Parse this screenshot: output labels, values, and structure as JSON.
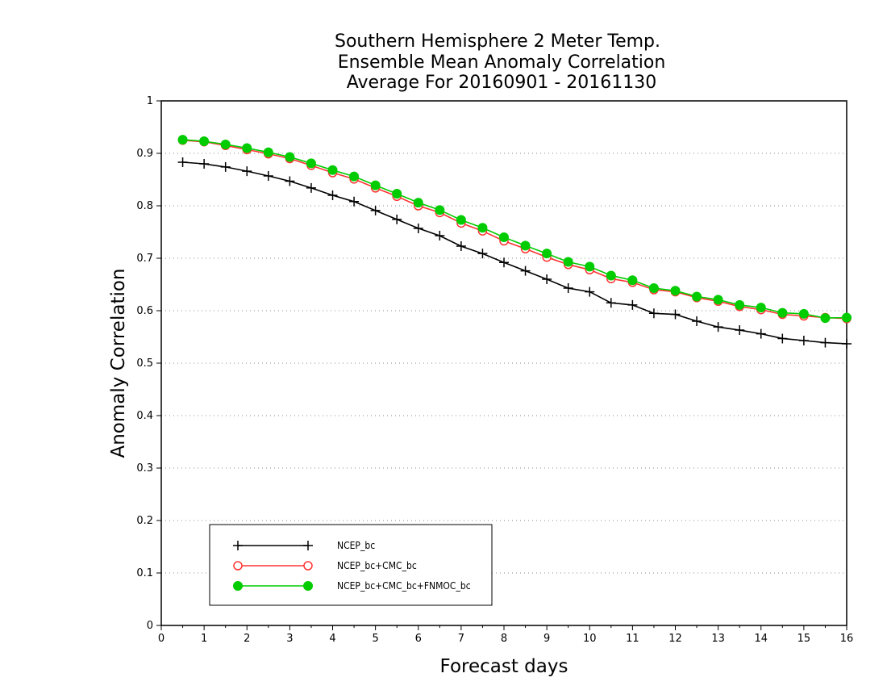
{
  "chart_data": {
    "type": "line",
    "title": [
      "Southern Hemisphere 2 Meter Temp.",
      "Ensemble Mean Anomaly Correlation",
      "Average For 20160901 - 20161130"
    ],
    "xlabel": "Forecast days",
    "ylabel": "Anomaly Correlation",
    "xlim": [
      0,
      16
    ],
    "ylim": [
      0,
      1
    ],
    "x_ticks": [
      "0",
      "1",
      "2",
      "3",
      "4",
      "5",
      "6",
      "7",
      "8",
      "9",
      "10",
      "11",
      "12",
      "13",
      "14",
      "15",
      "16"
    ],
    "y_ticks": [
      "0",
      "0.1",
      "0.2",
      "0.3",
      "0.4",
      "0.5",
      "0.6",
      "0.7",
      "0.8",
      "0.9",
      "1"
    ],
    "grid": "dotted horizontal",
    "legend_position": "bottom-left",
    "x": [
      0.5,
      1,
      1.5,
      2,
      2.5,
      3,
      3.5,
      4,
      4.5,
      5,
      5.5,
      6,
      6.5,
      7,
      7.5,
      8,
      8.5,
      9,
      9.5,
      10,
      10.5,
      11,
      11.5,
      12,
      12.5,
      13,
      13.5,
      14,
      14.5,
      15,
      15.5,
      16
    ],
    "series": [
      {
        "name": "NCEP_bc",
        "color": "#000000",
        "marker": "plus",
        "values": [
          0.883,
          0.88,
          0.874,
          0.866,
          0.857,
          0.847,
          0.834,
          0.82,
          0.808,
          0.791,
          0.774,
          0.757,
          0.743,
          0.723,
          0.709,
          0.692,
          0.676,
          0.66,
          0.643,
          0.636,
          0.615,
          0.611,
          0.595,
          0.593,
          0.58,
          0.569,
          0.563,
          0.556,
          0.547,
          0.543,
          0.539,
          0.537
        ]
      },
      {
        "name": "NCEP_bc+CMC_bc",
        "color": "#ff3333",
        "marker": "open-circle",
        "values": [
          0.925,
          0.922,
          0.915,
          0.907,
          0.899,
          0.89,
          0.877,
          0.863,
          0.851,
          0.834,
          0.818,
          0.8,
          0.787,
          0.767,
          0.752,
          0.733,
          0.718,
          0.702,
          0.688,
          0.678,
          0.661,
          0.654,
          0.64,
          0.636,
          0.625,
          0.618,
          0.608,
          0.602,
          0.593,
          0.59,
          0.587,
          0.585
        ]
      },
      {
        "name": "NCEP_bc+CMC_bc+FNMOC_bc",
        "color": "#00cc00",
        "marker": "filled-circle",
        "values": [
          0.926,
          0.923,
          0.917,
          0.91,
          0.902,
          0.893,
          0.881,
          0.868,
          0.856,
          0.839,
          0.823,
          0.806,
          0.792,
          0.773,
          0.758,
          0.74,
          0.724,
          0.709,
          0.693,
          0.684,
          0.667,
          0.658,
          0.643,
          0.638,
          0.627,
          0.621,
          0.611,
          0.606,
          0.596,
          0.594,
          0.586,
          0.587
        ]
      }
    ]
  }
}
